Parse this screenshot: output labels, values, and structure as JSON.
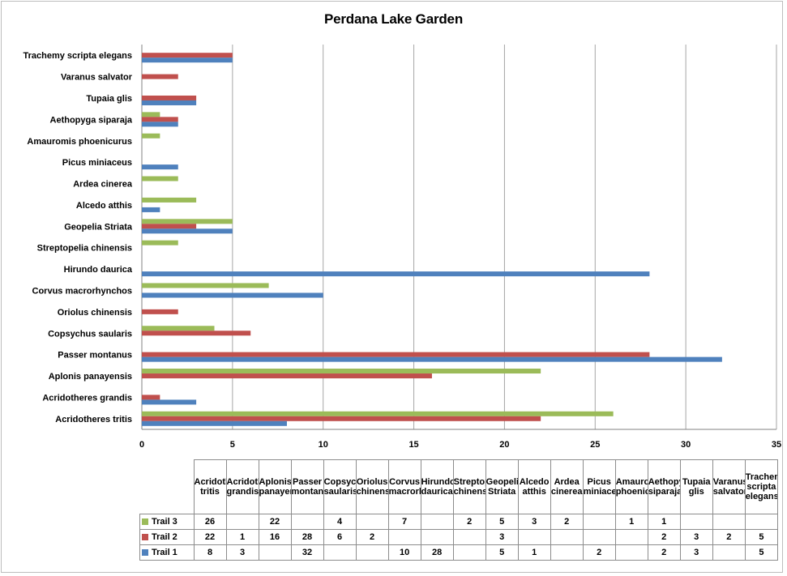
{
  "colors": {
    "trail1": "#4f81bd",
    "trail2": "#c0504d",
    "trail3": "#9bbb59",
    "grid": "#a6a6a6"
  },
  "chart_data": {
    "type": "bar",
    "orientation": "horizontal",
    "title": "Perdana Lake Garden",
    "categories": [
      "Acridotheres tritis",
      "Acridotheres grandis",
      "Aplonis panayensis",
      "Passer montanus",
      "Copsychus saularis",
      "Oriolus chinensis",
      "Corvus macrorhynchos",
      "Hirundo daurica",
      "Streptopelia chinensis",
      "Geopelia Striata",
      "Alcedo atthis",
      "Ardea cinerea",
      "Picus miniaceus",
      "Amauromis phoenicurus",
      "Aethopyga siparaja",
      "Tupaia glis",
      "Varanus salvator",
      "Trachemy scripta elegans"
    ],
    "table_headers": [
      "Acridotheres tritis",
      "Acridotheres grandis",
      "Aplonis panayensis",
      "Passer montanus",
      "Copsychus saularis",
      "Oriolus chinensis",
      "Corvus macrorhynchos",
      "Hirundo daurica",
      "Streptopelia chinensis",
      "Geopeli Striata",
      "Alcedo atthis",
      "Ardea cinerea",
      "Picus miniaceus",
      "Amauronis phoenicurus",
      "Aethopyga siparaja",
      "Tupaia glis",
      "Varanus salvator",
      "Trachemy scripta elegans"
    ],
    "series": [
      {
        "name": "Trail 3",
        "values": [
          26,
          null,
          22,
          null,
          4,
          null,
          7,
          null,
          2,
          5,
          3,
          2,
          null,
          1,
          1,
          null,
          null,
          null
        ]
      },
      {
        "name": "Trail 2",
        "values": [
          22,
          1,
          16,
          28,
          6,
          2,
          null,
          null,
          null,
          3,
          null,
          null,
          null,
          null,
          2,
          3,
          2,
          5
        ]
      },
      {
        "name": "Trail 1",
        "values": [
          8,
          3,
          null,
          32,
          null,
          null,
          10,
          28,
          null,
          5,
          1,
          null,
          2,
          null,
          2,
          3,
          null,
          5
        ]
      }
    ],
    "xlim": [
      0,
      35
    ],
    "xticks": [
      0,
      5,
      10,
      15,
      20,
      25,
      30,
      35
    ],
    "grid": true,
    "legend": "data-table"
  }
}
